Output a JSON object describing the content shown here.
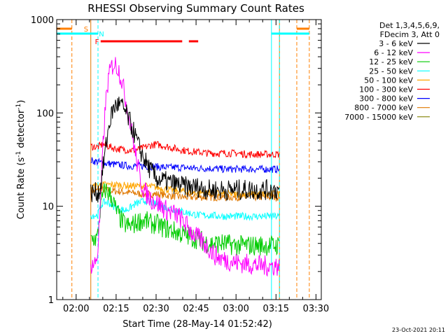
{
  "chart_data": {
    "type": "line",
    "title": "RHESSI Observing Summary Count Rates",
    "xlabel": "Start Time (28-May-14 01:52:42)",
    "ylabel_main": "Count Rate (s",
    "ylabel_sup1": "-1",
    "ylabel_mid": " detector",
    "ylabel_sup2": "-1",
    "ylabel_end": ")",
    "ylabel": "Count Rate (s-1 detector-1)",
    "y_scale": "log",
    "xlim_minutes": [
      112.7,
      212.0
    ],
    "ylim": [
      1,
      1000
    ],
    "x_ticks": [
      {
        "t": 120,
        "label": "02:00"
      },
      {
        "t": 135,
        "label": "02:15"
      },
      {
        "t": 150,
        "label": "02:30"
      },
      {
        "t": 165,
        "label": "02:45"
      },
      {
        "t": 180,
        "label": "03:00"
      },
      {
        "t": 195,
        "label": "03:15"
      },
      {
        "t": 210,
        "label": "03:30"
      }
    ],
    "y_ticks": [
      {
        "v": 1,
        "label": "1"
      },
      {
        "v": 10,
        "label": "10"
      },
      {
        "v": 100,
        "label": "100"
      },
      {
        "v": 1000,
        "label": "1000"
      }
    ],
    "legend_title_1": "Det 1,3,4,5,6,9,",
    "legend_title_2": "FDecim 3, Att 0",
    "legend_placement": "right",
    "timestamp": "23-Oct-2021 20:11",
    "series": [
      {
        "name": "3 - 6 keV",
        "color": "#000000",
        "points": [
          [
            125.5,
            14
          ],
          [
            128,
            14
          ],
          [
            129,
            15
          ],
          [
            130,
            25
          ],
          [
            131,
            40
          ],
          [
            132,
            65
          ],
          [
            133,
            90
          ],
          [
            134,
            110
          ],
          [
            135,
            122
          ],
          [
            136,
            124
          ],
          [
            137,
            118
          ],
          [
            138,
            108
          ],
          [
            139,
            95
          ],
          [
            140,
            82
          ],
          [
            141,
            70
          ],
          [
            142,
            58
          ],
          [
            143,
            48
          ],
          [
            144,
            40
          ],
          [
            145,
            35
          ],
          [
            146,
            30
          ],
          [
            147,
            27
          ],
          [
            148,
            24
          ],
          [
            149,
            22
          ],
          [
            150,
            20
          ],
          [
            152,
            19
          ],
          [
            155,
            18
          ],
          [
            158,
            17
          ],
          [
            162,
            16
          ],
          [
            166,
            16
          ],
          [
            170,
            15
          ],
          [
            175,
            15
          ],
          [
            180,
            15
          ],
          [
            185,
            15
          ],
          [
            190,
            15
          ],
          [
            195,
            15
          ],
          [
            196.3,
            15
          ]
        ]
      },
      {
        "name": "6 - 12 keV",
        "color": "#ff00ff",
        "points": [
          [
            125.5,
            2.4
          ],
          [
            127,
            2.4
          ],
          [
            128,
            3
          ],
          [
            129,
            9
          ],
          [
            130,
            40
          ],
          [
            131,
            120
          ],
          [
            132,
            220
          ],
          [
            133,
            300
          ],
          [
            134,
            335
          ],
          [
            135,
            330
          ],
          [
            136,
            290
          ],
          [
            137,
            230
          ],
          [
            138,
            170
          ],
          [
            139,
            120
          ],
          [
            140,
            85
          ],
          [
            141,
            60
          ],
          [
            142,
            40
          ],
          [
            143,
            28
          ],
          [
            144,
            20
          ],
          [
            145,
            16
          ],
          [
            146,
            14
          ],
          [
            148,
            12
          ],
          [
            150,
            11
          ],
          [
            152,
            10
          ],
          [
            154,
            9
          ],
          [
            156,
            8.5
          ],
          [
            158,
            8
          ],
          [
            160,
            7
          ],
          [
            162,
            6
          ],
          [
            164,
            5
          ],
          [
            166,
            4.5
          ],
          [
            168,
            4
          ],
          [
            170,
            3.5
          ],
          [
            172,
            3
          ],
          [
            175,
            2.7
          ],
          [
            180,
            2.5
          ],
          [
            185,
            2.4
          ],
          [
            190,
            2.3
          ],
          [
            195,
            2.3
          ],
          [
            196.3,
            2.3
          ]
        ]
      },
      {
        "name": "12 - 25 keV",
        "color": "#00cc00",
        "points": [
          [
            125.5,
            4.5
          ],
          [
            128,
            4.5
          ],
          [
            129,
            9
          ],
          [
            130,
            13
          ],
          [
            131,
            15
          ],
          [
            132,
            14
          ],
          [
            133,
            13
          ],
          [
            134,
            11
          ],
          [
            135,
            9
          ],
          [
            136,
            8
          ],
          [
            137,
            7
          ],
          [
            138,
            6.5
          ],
          [
            140,
            6
          ],
          [
            142,
            6.5
          ],
          [
            144,
            7
          ],
          [
            146,
            7
          ],
          [
            148,
            6.5
          ],
          [
            150,
            6.5
          ],
          [
            152,
            6
          ],
          [
            156,
            5.5
          ],
          [
            160,
            5
          ],
          [
            165,
            4.5
          ],
          [
            170,
            4
          ],
          [
            175,
            4
          ],
          [
            180,
            3.8
          ],
          [
            185,
            3.8
          ],
          [
            190,
            3.8
          ],
          [
            195,
            3.8
          ],
          [
            196.3,
            3.8
          ]
        ]
      },
      {
        "name": "25 - 50 keV",
        "color": "#00ffff",
        "points": [
          [
            125.5,
            8
          ],
          [
            128,
            8
          ],
          [
            129,
            9.5
          ],
          [
            130,
            11
          ],
          [
            132,
            11
          ],
          [
            134,
            10
          ],
          [
            136,
            9.5
          ],
          [
            138,
            9
          ],
          [
            140,
            9.5
          ],
          [
            142,
            10.5
          ],
          [
            144,
            11
          ],
          [
            146,
            11.5
          ],
          [
            148,
            11
          ],
          [
            150,
            10.5
          ],
          [
            152,
            10
          ],
          [
            155,
            9.5
          ],
          [
            158,
            9
          ],
          [
            162,
            8.5
          ],
          [
            166,
            8
          ],
          [
            170,
            8
          ],
          [
            175,
            7.8
          ],
          [
            180,
            7.8
          ],
          [
            185,
            7.8
          ],
          [
            190,
            7.8
          ],
          [
            195,
            7.8
          ],
          [
            196.3,
            7.8
          ]
        ]
      },
      {
        "name": "50 - 100 keV",
        "color": "#ffa500",
        "points": [
          [
            125.5,
            16
          ],
          [
            130,
            17
          ],
          [
            135,
            17
          ],
          [
            140,
            16.5
          ],
          [
            145,
            16.5
          ],
          [
            150,
            16
          ],
          [
            155,
            15
          ],
          [
            160,
            14.5
          ],
          [
            165,
            14
          ],
          [
            170,
            14
          ],
          [
            175,
            13.5
          ],
          [
            180,
            13.5
          ],
          [
            185,
            13.5
          ],
          [
            190,
            13.5
          ],
          [
            195,
            13.5
          ],
          [
            196.3,
            13.5
          ]
        ]
      },
      {
        "name": "100 - 300 keV",
        "color": "#ff0000",
        "points": [
          [
            125.5,
            44
          ],
          [
            128,
            43
          ],
          [
            130,
            46
          ],
          [
            132,
            44
          ],
          [
            134,
            42
          ],
          [
            136,
            41
          ],
          [
            138,
            40.5
          ],
          [
            140,
            40
          ],
          [
            142,
            40
          ],
          [
            144,
            41
          ],
          [
            146,
            43
          ],
          [
            148,
            45
          ],
          [
            150,
            46
          ],
          [
            152,
            45
          ],
          [
            155,
            43
          ],
          [
            158,
            41
          ],
          [
            162,
            39
          ],
          [
            166,
            38
          ],
          [
            170,
            37
          ],
          [
            175,
            37
          ],
          [
            180,
            37
          ],
          [
            185,
            36
          ],
          [
            190,
            36
          ],
          [
            195,
            36
          ],
          [
            196.3,
            36
          ]
        ]
      },
      {
        "name": "300 - 800 keV",
        "color": "#0000ff",
        "points": [
          [
            125.5,
            31
          ],
          [
            130,
            29
          ],
          [
            135,
            28
          ],
          [
            140,
            27
          ],
          [
            145,
            27
          ],
          [
            150,
            26.5
          ],
          [
            155,
            26
          ],
          [
            160,
            26
          ],
          [
            165,
            25.5
          ],
          [
            170,
            25.5
          ],
          [
            175,
            25
          ],
          [
            180,
            25
          ],
          [
            185,
            25
          ],
          [
            190,
            25
          ],
          [
            195,
            25
          ],
          [
            196.3,
            25
          ]
        ]
      },
      {
        "name": "800 - 7000 keV",
        "color": "#e07800",
        "points": [
          [
            125.5,
            14.5
          ],
          [
            130,
            15
          ],
          [
            135,
            14.5
          ],
          [
            140,
            14
          ],
          [
            145,
            13.5
          ],
          [
            150,
            13.5
          ],
          [
            155,
            13
          ],
          [
            160,
            12.5
          ],
          [
            165,
            12.5
          ],
          [
            170,
            12.5
          ],
          [
            175,
            12.5
          ],
          [
            180,
            12.5
          ],
          [
            185,
            12.5
          ],
          [
            190,
            12.5
          ],
          [
            195,
            12.5
          ],
          [
            196.3,
            12.5
          ]
        ]
      },
      {
        "name": "7000 - 15000 keV",
        "color": "#808000",
        "points": []
      }
    ],
    "flags": [
      {
        "label": "S",
        "color": "#ff7f00",
        "label_t": 123.7,
        "segments": [
          [
            112.7,
            118.4
          ],
          [
            202.8,
            207.5
          ]
        ],
        "vlines": [
          118.4,
          202.8,
          207.5
        ]
      },
      {
        "label": "N",
        "color": "#00ffff",
        "label_t": 129.5,
        "segments": [
          [
            112.7,
            128.2
          ],
          [
            193.3,
            207.5
          ]
        ],
        "vlines": [
          128.2,
          193.3,
          196.3
        ]
      },
      {
        "label": "F",
        "color": "#ff0000",
        "label_t": 127.8,
        "segments": [
          [
            129.2,
            159.8
          ],
          [
            162.3,
            165.8
          ]
        ],
        "vlines": []
      }
    ],
    "data_edges": [
      {
        "t": 125.5,
        "color": "#e07800"
      },
      {
        "t": 196.3,
        "color": "#e07800"
      }
    ]
  }
}
